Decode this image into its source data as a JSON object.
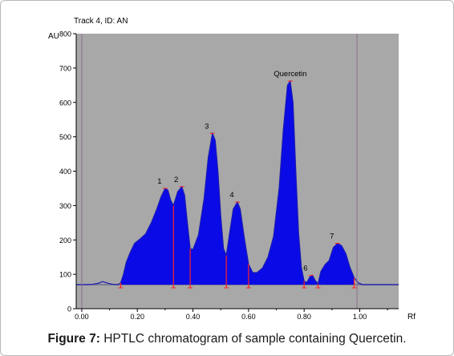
{
  "figure": {
    "label": "Figure 7:",
    "caption": "HPTLC chromatogram of sample containing Quercetin."
  },
  "chart_data": {
    "type": "area",
    "title": "Track 4, ID: AN",
    "xlabel": "Rf",
    "ylabel": "AU",
    "xlim": [
      -0.02,
      1.14
    ],
    "ylim": [
      0,
      800
    ],
    "xticks": [
      "0.00",
      "0.20",
      "0.40",
      "0.60",
      "0.80",
      "1.00"
    ],
    "xtick_values": [
      0.0,
      0.2,
      0.4,
      0.6,
      0.8,
      1.0
    ],
    "yticks": [
      "0",
      "100",
      "200",
      "300",
      "400",
      "500",
      "600",
      "700",
      "800"
    ],
    "ytick_values": [
      0,
      100,
      200,
      300,
      400,
      500,
      600,
      700,
      800
    ],
    "baseline": 70,
    "colors": {
      "plot_bg": "#a8a8a8",
      "fill": "#0a0ae6",
      "line": "#1a1ab4",
      "marker": "#ff2020",
      "baseline": "#6e6e8a",
      "frame_line": "#8c6e8c"
    },
    "curve": [
      [
        -0.02,
        70
      ],
      [
        0.02,
        70
      ],
      [
        0.04,
        71
      ],
      [
        0.06,
        74
      ],
      [
        0.075,
        79
      ],
      [
        0.09,
        75
      ],
      [
        0.11,
        71
      ],
      [
        0.13,
        70
      ],
      [
        0.14,
        75
      ],
      [
        0.15,
        100
      ],
      [
        0.16,
        135
      ],
      [
        0.175,
        165
      ],
      [
        0.19,
        190
      ],
      [
        0.21,
        203
      ],
      [
        0.23,
        218
      ],
      [
        0.25,
        250
      ],
      [
        0.27,
        290
      ],
      [
        0.285,
        325
      ],
      [
        0.3,
        350
      ],
      [
        0.31,
        345
      ],
      [
        0.32,
        315
      ],
      [
        0.33,
        300
      ],
      [
        0.345,
        340
      ],
      [
        0.36,
        355
      ],
      [
        0.37,
        330
      ],
      [
        0.38,
        250
      ],
      [
        0.39,
        175
      ],
      [
        0.4,
        172
      ],
      [
        0.42,
        215
      ],
      [
        0.44,
        320
      ],
      [
        0.455,
        440
      ],
      [
        0.47,
        510
      ],
      [
        0.48,
        490
      ],
      [
        0.49,
        400
      ],
      [
        0.5,
        270
      ],
      [
        0.51,
        175
      ],
      [
        0.52,
        155
      ],
      [
        0.53,
        210
      ],
      [
        0.545,
        290
      ],
      [
        0.56,
        310
      ],
      [
        0.57,
        290
      ],
      [
        0.585,
        205
      ],
      [
        0.6,
        130
      ],
      [
        0.615,
        105
      ],
      [
        0.63,
        105
      ],
      [
        0.65,
        118
      ],
      [
        0.67,
        150
      ],
      [
        0.69,
        210
      ],
      [
        0.71,
        350
      ],
      [
        0.725,
        520
      ],
      [
        0.74,
        650
      ],
      [
        0.75,
        662
      ],
      [
        0.76,
        600
      ],
      [
        0.77,
        400
      ],
      [
        0.78,
        220
      ],
      [
        0.79,
        120
      ],
      [
        0.8,
        80
      ],
      [
        0.81,
        76
      ],
      [
        0.82,
        92
      ],
      [
        0.83,
        97
      ],
      [
        0.84,
        82
      ],
      [
        0.85,
        73
      ],
      [
        0.86,
        108
      ],
      [
        0.875,
        128
      ],
      [
        0.89,
        140
      ],
      [
        0.905,
        178
      ],
      [
        0.92,
        190
      ],
      [
        0.935,
        183
      ],
      [
        0.95,
        160
      ],
      [
        0.965,
        120
      ],
      [
        0.98,
        90
      ],
      [
        0.995,
        75
      ],
      [
        1.01,
        70
      ],
      [
        1.14,
        70
      ]
    ],
    "peak_boundaries": [
      0.14,
      0.33,
      0.39,
      0.52,
      0.6,
      0.8,
      0.85,
      0.98
    ],
    "peaks": [
      {
        "label": "1",
        "rf": 0.3,
        "height": 350
      },
      {
        "label": "2",
        "rf": 0.36,
        "height": 355
      },
      {
        "label": "3",
        "rf": 0.47,
        "height": 510
      },
      {
        "label": "4",
        "rf": 0.56,
        "height": 310
      },
      {
        "label": "Quercetin",
        "rf": 0.75,
        "height": 662
      },
      {
        "label": "6",
        "rf": 0.825,
        "height": 97
      },
      {
        "label": "7",
        "rf": 0.92,
        "height": 190
      }
    ],
    "reference_lines_rf": [
      0.0,
      0.99
    ]
  }
}
